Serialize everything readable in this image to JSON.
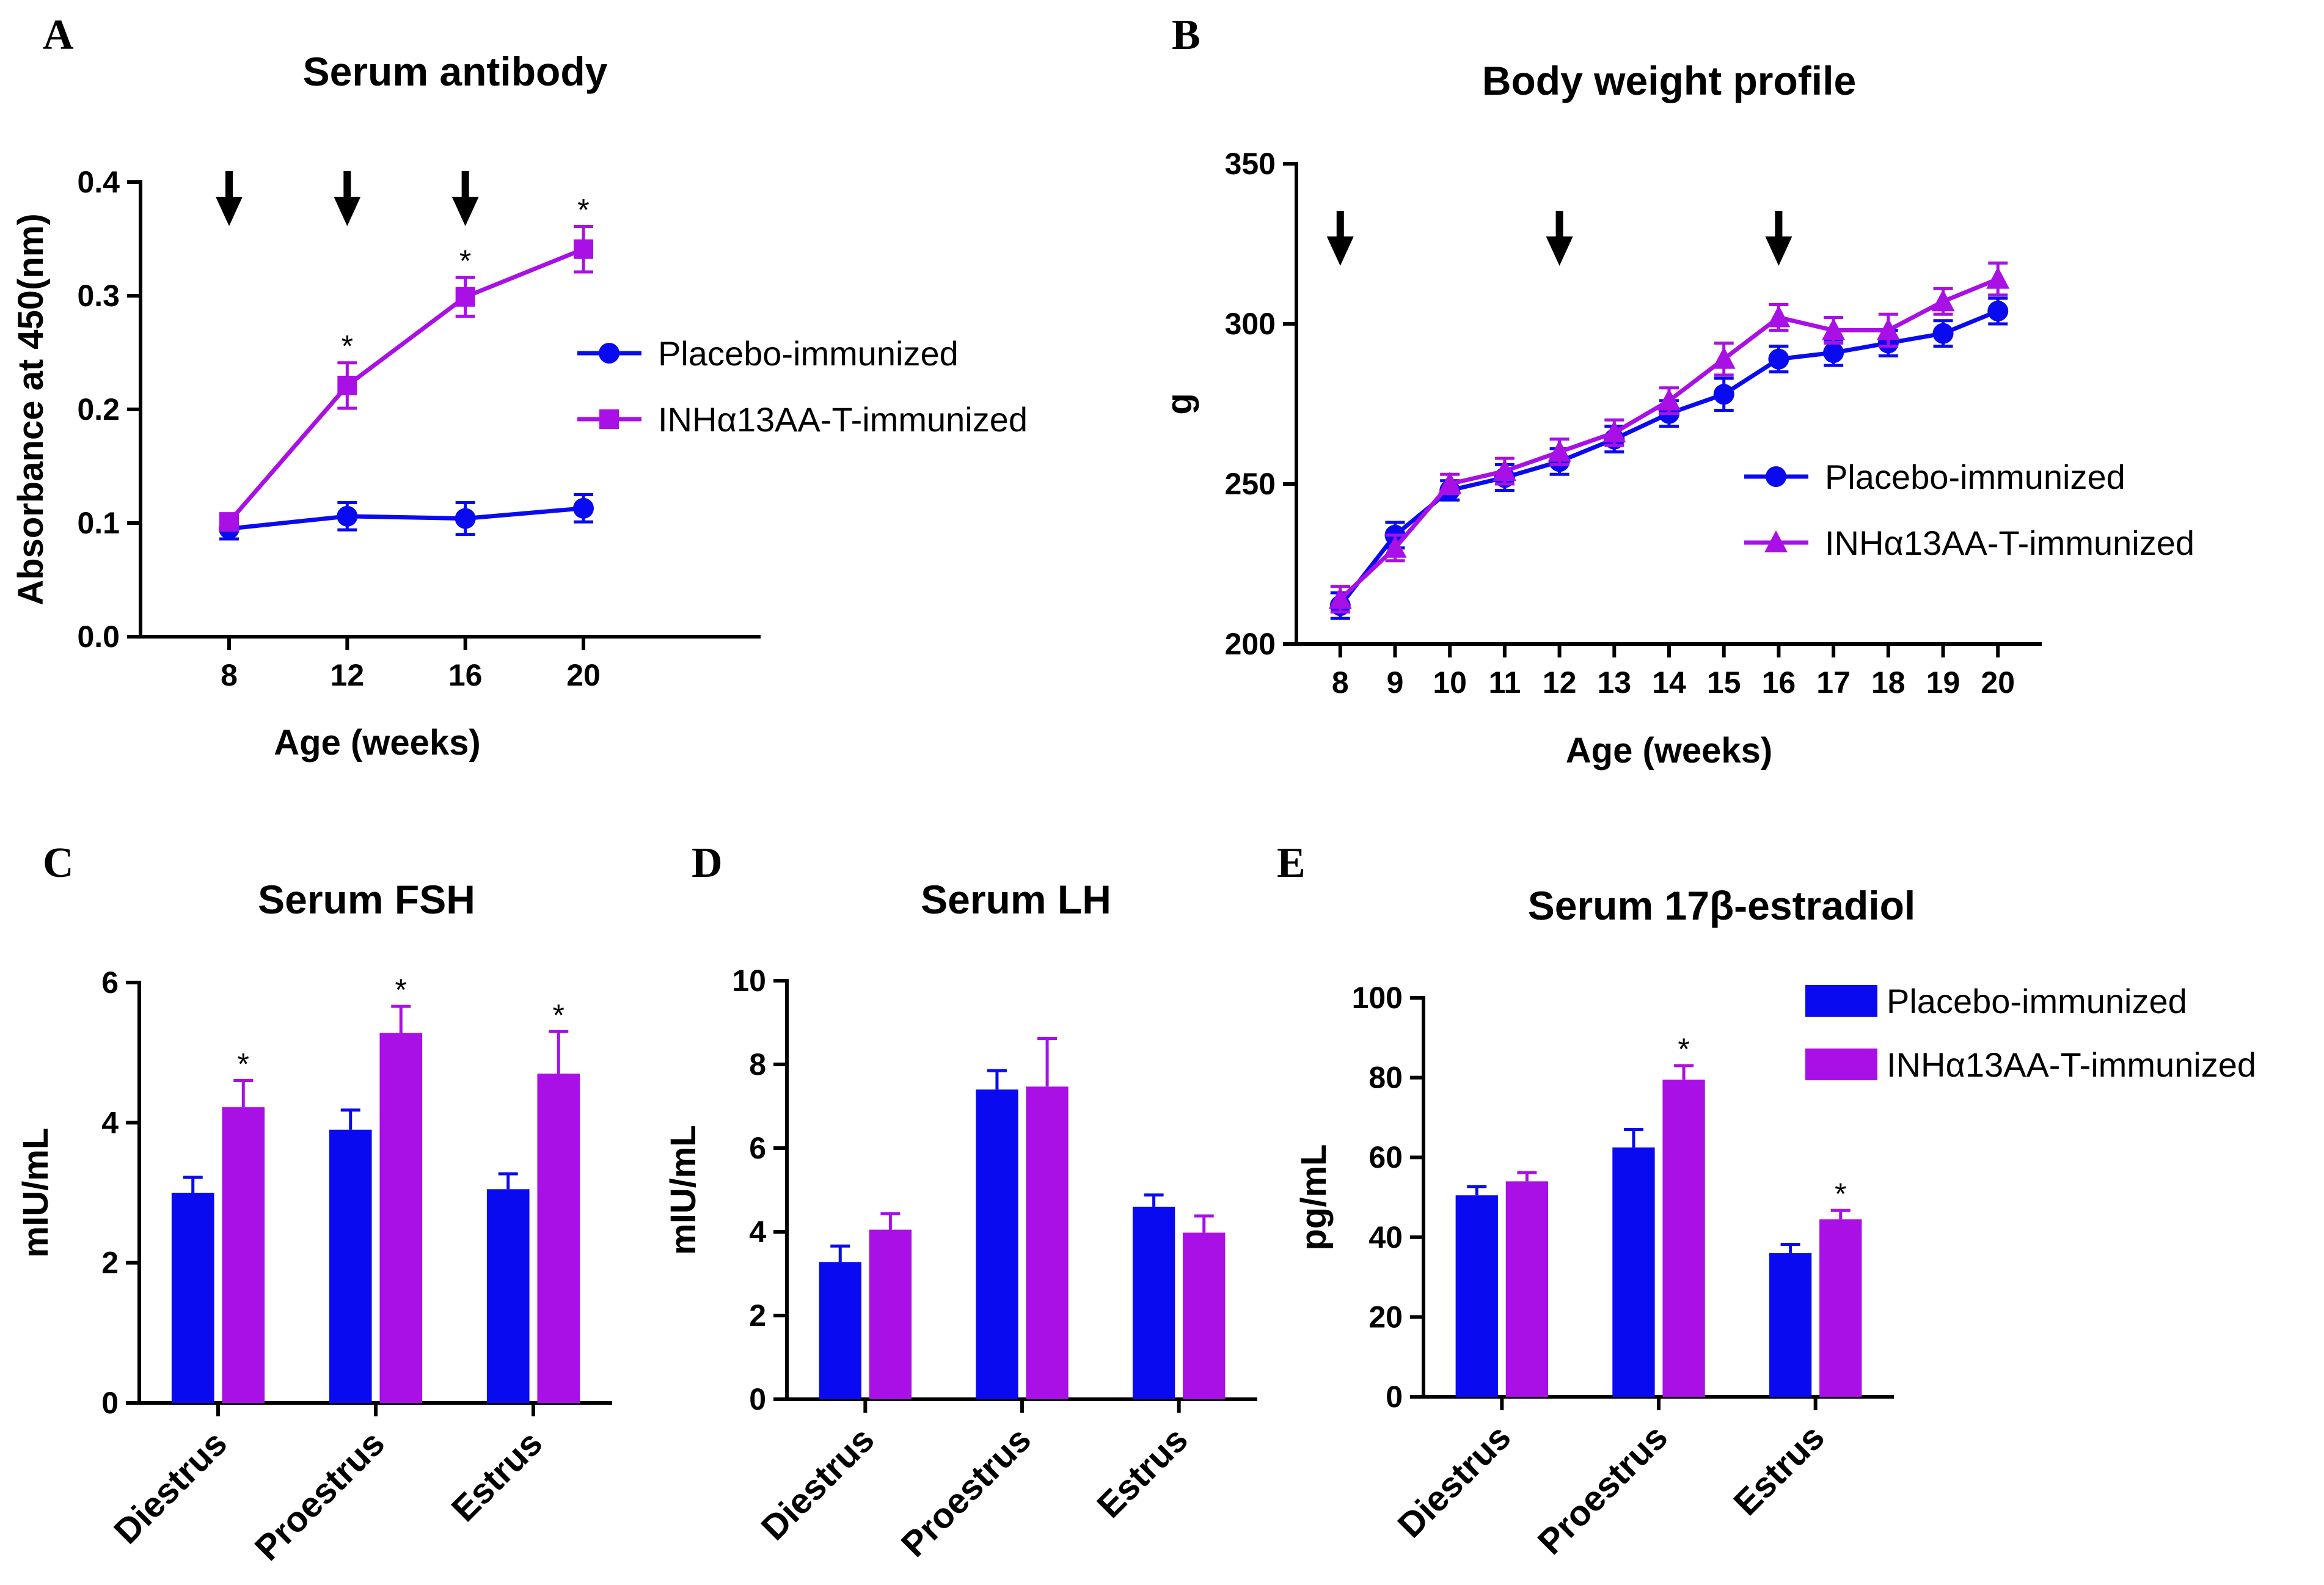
{
  "colors": {
    "placebo": "#0a0af0",
    "immunized": "#a810e6",
    "axis": "#000000"
  },
  "legend_labels": {
    "placebo": "Placebo-immunized",
    "immunized": "INHα13AA-T-immunized"
  },
  "chart_data": [
    {
      "id": "A",
      "panel_letter": "A",
      "type": "line",
      "title": "Serum antibody",
      "xlabel": "Age (weeks)",
      "ylabel": "Absorbance at 450(nm)",
      "x": [
        8,
        12,
        16,
        20
      ],
      "x_tick_labels": [
        "8",
        "12",
        "16",
        "20"
      ],
      "xlim": [
        5,
        26
      ],
      "ylim": [
        0,
        0.4
      ],
      "y_ticks": [
        0,
        0.1,
        0.2,
        0.3,
        0.4
      ],
      "y_tick_labels": [
        "0.0",
        "0.1",
        "0.2",
        "0.3",
        "0.4"
      ],
      "arrows_at": [
        8,
        12,
        16
      ],
      "series": [
        {
          "name": "Placebo-immunized",
          "key": "placebo",
          "marker": "circle",
          "values": [
            0.095,
            0.106,
            0.104,
            0.113
          ],
          "errors": [
            0.009,
            0.012,
            0.014,
            0.012
          ],
          "stars": []
        },
        {
          "name": "INHα13AA-T-immunized",
          "key": "immunized",
          "marker": "square",
          "values": [
            0.101,
            0.221,
            0.299,
            0.341
          ],
          "errors": [
            0.005,
            0.02,
            0.017,
            0.02
          ],
          "stars": [
            1,
            2,
            3
          ]
        }
      ],
      "legend": "right",
      "grid": false
    },
    {
      "id": "B",
      "panel_letter": "B",
      "type": "line",
      "title": "Body weight profile",
      "xlabel": "Age (weeks)",
      "ylabel": "g",
      "x": [
        8,
        9,
        10,
        11,
        12,
        13,
        14,
        15,
        16,
        17,
        18,
        19,
        20
      ],
      "x_tick_labels": [
        "8",
        "9",
        "10",
        "11",
        "12",
        "13",
        "14",
        "15",
        "16",
        "17",
        "18",
        "19",
        "20"
      ],
      "xlim": [
        7.2,
        20.8
      ],
      "ylim": [
        200,
        350
      ],
      "y_ticks": [
        200,
        250,
        300,
        350
      ],
      "y_tick_labels": [
        "200",
        "250",
        "300",
        "350"
      ],
      "arrows_at": [
        8,
        12,
        16
      ],
      "series": [
        {
          "name": "Placebo-immunized",
          "key": "placebo",
          "marker": "circle",
          "values": [
            212,
            234,
            248,
            252,
            257,
            264,
            272,
            278,
            289,
            291,
            294,
            297,
            304
          ],
          "errors": [
            4,
            4,
            3,
            4,
            4,
            4,
            4,
            5,
            4,
            4,
            4,
            4,
            4
          ],
          "stars": []
        },
        {
          "name": "INHα13AA-T-immunized",
          "key": "immunized",
          "marker": "triangle",
          "values": [
            214,
            230,
            250,
            254,
            260,
            266,
            276,
            289,
            302,
            298,
            298,
            307,
            314
          ],
          "errors": [
            4,
            4,
            3,
            4,
            4,
            4,
            4,
            5,
            4,
            4,
            5,
            4,
            5
          ],
          "stars": []
        }
      ],
      "legend": "center-right",
      "grid": false
    },
    {
      "id": "C",
      "panel_letter": "C",
      "type": "bar",
      "title": "Serum FSH",
      "xlabel": "",
      "ylabel": "mIU/mL",
      "categories": [
        "Diestrus",
        "Proestrus",
        "Estrus"
      ],
      "ylim": [
        0,
        6
      ],
      "y_ticks": [
        0,
        2,
        4,
        6
      ],
      "y_tick_labels": [
        "0",
        "2",
        "4",
        "6"
      ],
      "series": [
        {
          "name": "Placebo-immunized",
          "key": "placebo",
          "values": [
            3.0,
            3.9,
            3.05
          ],
          "errors": [
            0.22,
            0.28,
            0.22
          ],
          "stars": []
        },
        {
          "name": "INHα13AA-T-immunized",
          "key": "immunized",
          "values": [
            4.22,
            5.28,
            4.7
          ],
          "errors": [
            0.38,
            0.38,
            0.6
          ],
          "stars": [
            0,
            1,
            2
          ]
        }
      ],
      "legend": "none",
      "grid": false
    },
    {
      "id": "D",
      "panel_letter": "D",
      "type": "bar",
      "title": "Serum LH",
      "xlabel": "",
      "ylabel": "mIU/mL",
      "categories": [
        "Diestrus",
        "Proestrus",
        "Estrus"
      ],
      "ylim": [
        0,
        10
      ],
      "y_ticks": [
        0,
        2,
        4,
        6,
        8,
        10
      ],
      "y_tick_labels": [
        "0",
        "2",
        "4",
        "6",
        "8",
        "10"
      ],
      "series": [
        {
          "name": "Placebo-immunized",
          "key": "placebo",
          "values": [
            3.28,
            7.4,
            4.6
          ],
          "errors": [
            0.38,
            0.45,
            0.28
          ],
          "stars": []
        },
        {
          "name": "INHα13AA-T-immunized",
          "key": "immunized",
          "values": [
            4.05,
            7.47,
            3.98
          ],
          "errors": [
            0.38,
            1.15,
            0.4
          ],
          "stars": []
        }
      ],
      "legend": "none",
      "grid": false
    },
    {
      "id": "E",
      "panel_letter": "E",
      "type": "bar",
      "title": "Serum 17β-estradiol",
      "xlabel": "",
      "ylabel": "pg/mL",
      "categories": [
        "Diestrus",
        "Proestrus",
        "Estrus"
      ],
      "ylim": [
        0,
        100
      ],
      "y_ticks": [
        0,
        20,
        40,
        60,
        80,
        100
      ],
      "y_tick_labels": [
        "0",
        "20",
        "40",
        "60",
        "80",
        "100"
      ],
      "series": [
        {
          "name": "Placebo-immunized",
          "key": "placebo",
          "values": [
            50.5,
            62.5,
            36
          ],
          "errors": [
            2.2,
            4.5,
            2.2
          ],
          "stars": []
        },
        {
          "name": "INHα13AA-T-immunized",
          "key": "immunized",
          "values": [
            54,
            79.5,
            44.5
          ],
          "errors": [
            2.2,
            3.5,
            2.2
          ],
          "stars": [
            1,
            2
          ]
        }
      ],
      "legend": "top-right",
      "grid": false
    }
  ]
}
